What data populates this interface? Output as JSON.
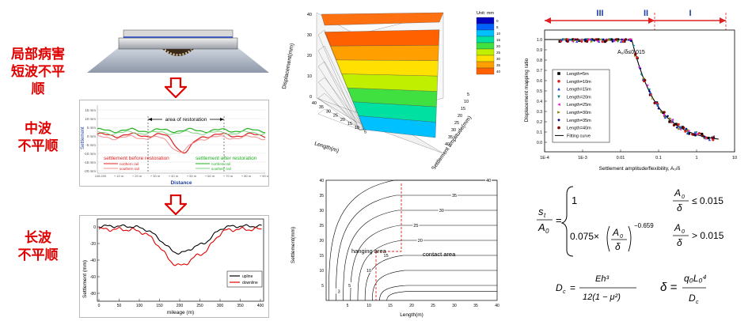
{
  "left_labels": {
    "short_wave": [
      "局部病害",
      "短波不平顺"
    ],
    "mid_wave": [
      "中波",
      "不平顺"
    ],
    "long_wave": [
      "长波",
      "不平顺"
    ]
  },
  "mid_plot": {
    "ylabel": "Settlement",
    "xlabel": "Distance",
    "area_label": "area of restoration",
    "before_label": "settlement before restoration",
    "after_label": "settlement after restoration",
    "legend_before": [
      "northern rail",
      "southern rail"
    ],
    "legend_after": [
      "northern rail",
      "southern rail"
    ],
    "y_ticks": [
      "15 mm",
      "10 mm",
      "5 mm",
      "0 mm",
      "-5 mm",
      "-10 mm",
      "-15 mm",
      "-20 mm"
    ],
    "x_ticks": [
      "108.200",
      "+ 10 m",
      "+ 20 m",
      "+ 30 m",
      "+ 40 m",
      "+ 50 m",
      "+ 60 m",
      "+ 70 m",
      "+ 80 m",
      "+ 90 m"
    ],
    "colors": {
      "before": "#e02020",
      "after": "#20b020"
    }
  },
  "long_plot": {
    "ylabel": "Settlement (mm)",
    "xlabel": "mileage (m)",
    "legend": [
      "upline",
      "downline"
    ],
    "y_ticks": [
      "0",
      "-20",
      "-40",
      "-60",
      "-80"
    ],
    "x_ticks": [
      "0",
      "50",
      "100",
      "150",
      "200",
      "250",
      "300",
      "350",
      "400"
    ],
    "colors": {
      "upline": "#000000",
      "downline": "#e00000"
    }
  },
  "surface_plot": {
    "zlabel": "Displacement(mm)",
    "xlabel": "Length(m)",
    "ylabel": "Settlement amplitude(mm)",
    "unit_label": "Unit: mm",
    "colorbar_ticks": [
      "0",
      "5",
      "10",
      "15",
      "20",
      "25",
      "30",
      "35",
      "40"
    ],
    "x_ticks": [
      "40",
      "35",
      "30",
      "25",
      "20",
      "15",
      "10",
      "5"
    ],
    "y_ticks": [
      "40",
      "35",
      "30",
      "25",
      "20",
      "15",
      "10",
      "5"
    ],
    "z_ticks": [
      "40",
      "30",
      "20",
      "10",
      "0"
    ],
    "colors": [
      "#0000c0",
      "#0060ff",
      "#00c0ff",
      "#00e0a0",
      "#40e040",
      "#c0f000",
      "#ffe000",
      "#ffa000",
      "#ff6000"
    ]
  },
  "contour_plot": {
    "ylabel": "Settlement(mm)",
    "xlabel": "Length(m)",
    "hanging_label": "hanging area",
    "contact_label": "contact area",
    "y_ticks": [
      "40",
      "35",
      "30",
      "25",
      "20",
      "15",
      "10",
      "5"
    ],
    "x_ticks": [
      "5",
      "10",
      "15",
      "20",
      "25",
      "30",
      "35",
      "40"
    ],
    "contour_labels": [
      "40",
      "35",
      "30",
      "25",
      "20",
      "15",
      "10",
      "5",
      "3"
    ]
  },
  "mapping_plot": {
    "ylabel": "Displacement mapping ratio",
    "xlabel": "Settlement amplitude/flexibility, A₀/δ",
    "regions": [
      "III",
      "II",
      "I"
    ],
    "threshold_label": "A₀/δ≤0.015",
    "x_ticks": [
      "1E-4",
      "1E-3",
      "0.01",
      "0.1",
      "1",
      "10"
    ],
    "y_ticks": [
      "1.0",
      "0.9",
      "0.8",
      "0.7",
      "0.6",
      "0.5",
      "0.4",
      "0.3",
      "0.2",
      "0.1",
      "0.0"
    ],
    "legend": [
      "Length=5m",
      "Length=10m",
      "Length=15m",
      "Length=20m",
      "Length=25m",
      "Length=30m",
      "Length=35m",
      "Length=40m",
      "Fitting curve"
    ]
  },
  "formulas": {
    "lhs_num": "s",
    "lhs_sub": "t",
    "lhs_den": "A",
    "lhs_den_sub": "0",
    "case1_value": "1",
    "case2_coef": "0.075×",
    "case2_exp": "−0.659",
    "cond1_rel": "≤ 0.015",
    "cond2_rel": "> 0.015",
    "frac_num": "A",
    "frac_sub": "0",
    "frac_den": "δ",
    "dc_lhs": "D",
    "dc_lhs_sub": "c",
    "dc_num": "Eh³",
    "dc_den": "12(1 − μ²)",
    "delta_lhs": "δ =",
    "delta_num": "q₀L₀⁴",
    "delta_den": "D",
    "delta_den_sub": "c"
  }
}
